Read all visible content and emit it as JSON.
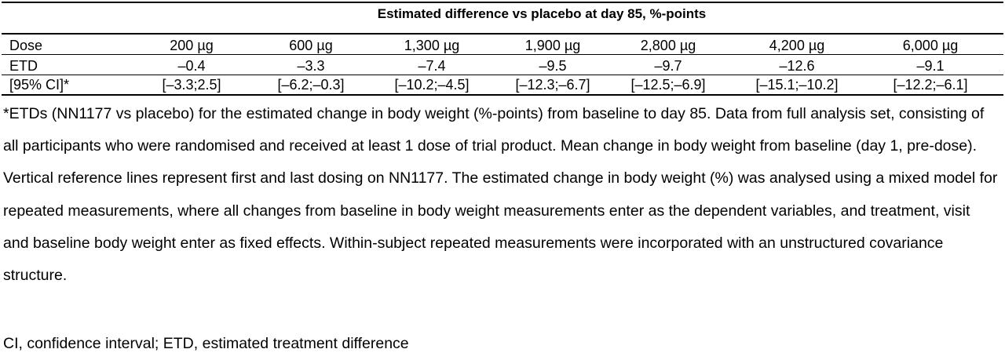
{
  "table": {
    "title": "Estimated difference vs placebo at day 85, %-points",
    "row_dose_label": "Dose",
    "row_etd_label": "ETD",
    "row_ci_label": "[95% CI]*",
    "doses": [
      "200 µg",
      "600 µg",
      "1,300 µg",
      "1,900 µg",
      "2,800 µg",
      "4,200 µg",
      "6,000 µg"
    ],
    "etd": [
      "–0.4",
      "–3.3",
      "–7.4",
      "–9.5",
      "–9.7",
      "–12.6",
      "–9.1"
    ],
    "ci": [
      "[–3.3;2.5]",
      "[–6.2;–0.3]",
      "[–10.2;–4.5]",
      "[–12.3;–6.7]",
      "[–12.5;–6.9]",
      "[–15.1;–10.2]",
      "[–12.2;–6.1]"
    ]
  },
  "footnote": "*ETDs (NN1177 vs placebo) for the estimated change in body weight (%-points) from baseline to day 85. Data from full analysis set, consisting of all participants who were randomised and received at least 1 dose of trial product. Mean change in body weight from baseline (day 1, pre-dose). Vertical reference lines represent first and last dosing on NN1177. The estimated change in body weight (%) was analysed using a mixed model for repeated measurements, where all changes from baseline in body weight measurements enter as the dependent variables, and treatment, visit and baseline body weight enter as fixed effects. Within-subject repeated measurements were incorporated with an unstructured covariance structure.",
  "abbreviations": "CI, confidence interval; ETD, estimated treatment difference"
}
